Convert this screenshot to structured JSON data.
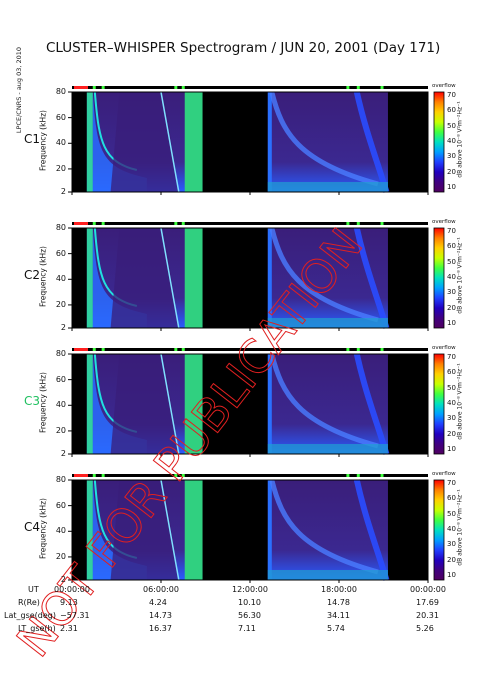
{
  "title": "CLUSTER–WHISPER Spectrogram / JUN 20, 2001 (Day 171)",
  "side_stamp": "LPCE/CNRS - aug 03, 2010",
  "watermark": "NOT FOR PUBLICATION",
  "colorbar": {
    "label": "dB above 10⁻⁸ V²m⁻²Hz⁻¹",
    "header": "overflow",
    "ticks": [
      70,
      60,
      50,
      40,
      30,
      20,
      10
    ],
    "colors": [
      "#ff0000",
      "#ff8000",
      "#ffd000",
      "#c8ff00",
      "#40ff40",
      "#00e0c0",
      "#00a0ff",
      "#2040ff",
      "#2000c0",
      "#400080",
      "#500060"
    ]
  },
  "colors": {
    "background": "#000000",
    "ant_mode_red": "#ff2020",
    "ant_mode_green": "#40ff40",
    "band_cyan": "#20e0e0",
    "dense_plasma": "#3a1e7a",
    "lobe_blue": "#2a4cff"
  },
  "chart_data": {
    "type": "heatmap",
    "xlabel": "UT",
    "ylabel": "Frequency (kHz)",
    "x_range_hours": [
      0,
      24
    ],
    "ylim_khz": [
      2,
      80
    ],
    "y_ticks": [
      2,
      20,
      40,
      60,
      80
    ],
    "panels": [
      {
        "name": "C1",
        "label_color": "#111111"
      },
      {
        "name": "C2",
        "label_color": "#111111"
      },
      {
        "name": "C3",
        "label_color": "#20c060"
      },
      {
        "name": "C4",
        "label_color": "#111111"
      }
    ],
    "x_ticks": [
      "00:00:00",
      "06:00:00",
      "12:00:00",
      "18:00:00",
      "00:00:00"
    ],
    "orbit_rows": [
      {
        "label": "R(Re)",
        "values": [
          "9.13",
          "4.24",
          "10.10",
          "14.78",
          "17.69"
        ]
      },
      {
        "label": "Lat_gse(deg)",
        "values": [
          "−57.31",
          "14.73",
          "56.30",
          "34.11",
          "20.31"
        ]
      },
      {
        "label": "LT_gse(h)",
        "values": [
          "2.31",
          "16.37",
          "7.11",
          "5.74",
          "5.26"
        ]
      }
    ],
    "data_intervals_hours": [
      [
        1.0,
        8.8
      ],
      [
        13.2,
        21.3
      ]
    ]
  }
}
